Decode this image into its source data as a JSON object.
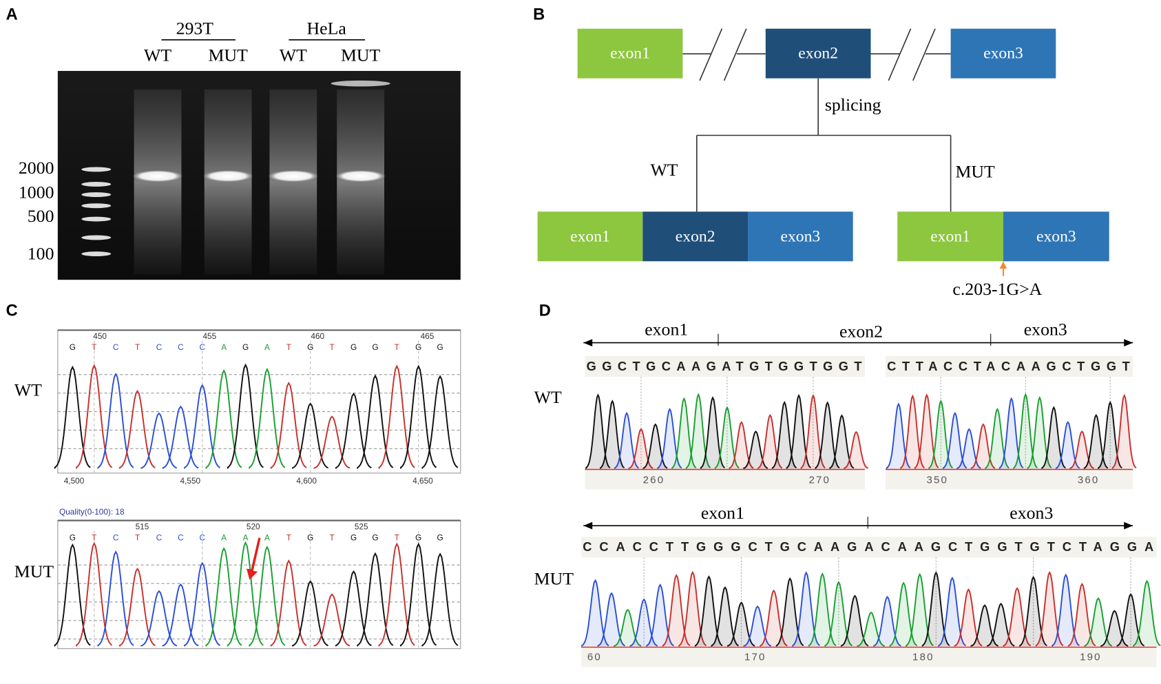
{
  "panel_a": {
    "label": "A",
    "groups": [
      "293T",
      "HeLa"
    ],
    "lanes": [
      "WT",
      "MUT",
      "WT",
      "MUT"
    ],
    "markers": [
      "2000",
      "1000",
      "500",
      "100"
    ]
  },
  "panel_b": {
    "label": "B",
    "top_exons": [
      "exon1",
      "exon2",
      "exon3"
    ],
    "splicing": "splicing",
    "wt": "WT",
    "mut": "MUT",
    "wt_exons": [
      "exon1",
      "exon2",
      "exon3"
    ],
    "mut_exons": [
      "exon1",
      "exon3"
    ],
    "mutation": "c.203-1G>A"
  },
  "panel_c": {
    "label": "C",
    "wt": {
      "name": "WT",
      "top_ticks": [
        "450",
        "455",
        "460",
        "465"
      ],
      "bases": [
        "G",
        "T",
        "C",
        "T",
        "C",
        "C",
        "C",
        "A",
        "G",
        "A",
        "T",
        "G",
        "T",
        "G",
        "G",
        "T",
        "G",
        "G"
      ],
      "bottom_ticks": [
        "4,500",
        "4,550",
        "4,600",
        "4,650"
      ]
    },
    "mut": {
      "name": "MUT",
      "quality": "Quality(0-100): 18",
      "top_ticks": [
        "515",
        "520",
        "525"
      ],
      "bases": [
        "G",
        "T",
        "C",
        "T",
        "C",
        "C",
        "C",
        "A",
        "A",
        "A",
        "T",
        "G",
        "T",
        "G",
        "G",
        "T",
        "G",
        "G"
      ]
    }
  },
  "panel_d": {
    "label": "D",
    "wt": {
      "name": "WT",
      "regions": [
        "exon1",
        "exon2",
        "exon3"
      ],
      "seq_left": "GGCTGCAAGATGTGGTGGT",
      "seq_right": "CTTACCTACAAGCTGGT",
      "ticks_left": [
        "260",
        "270"
      ],
      "ticks_right": [
        "350",
        "360"
      ]
    },
    "mut": {
      "name": "MUT",
      "regions": [
        "exon1",
        "exon3"
      ],
      "seq": "CCACCTTGGGCTGCAAGACAAGCTGGTGTCTAGGA",
      "ticks": [
        "60",
        "170",
        "180",
        "190"
      ]
    }
  }
}
